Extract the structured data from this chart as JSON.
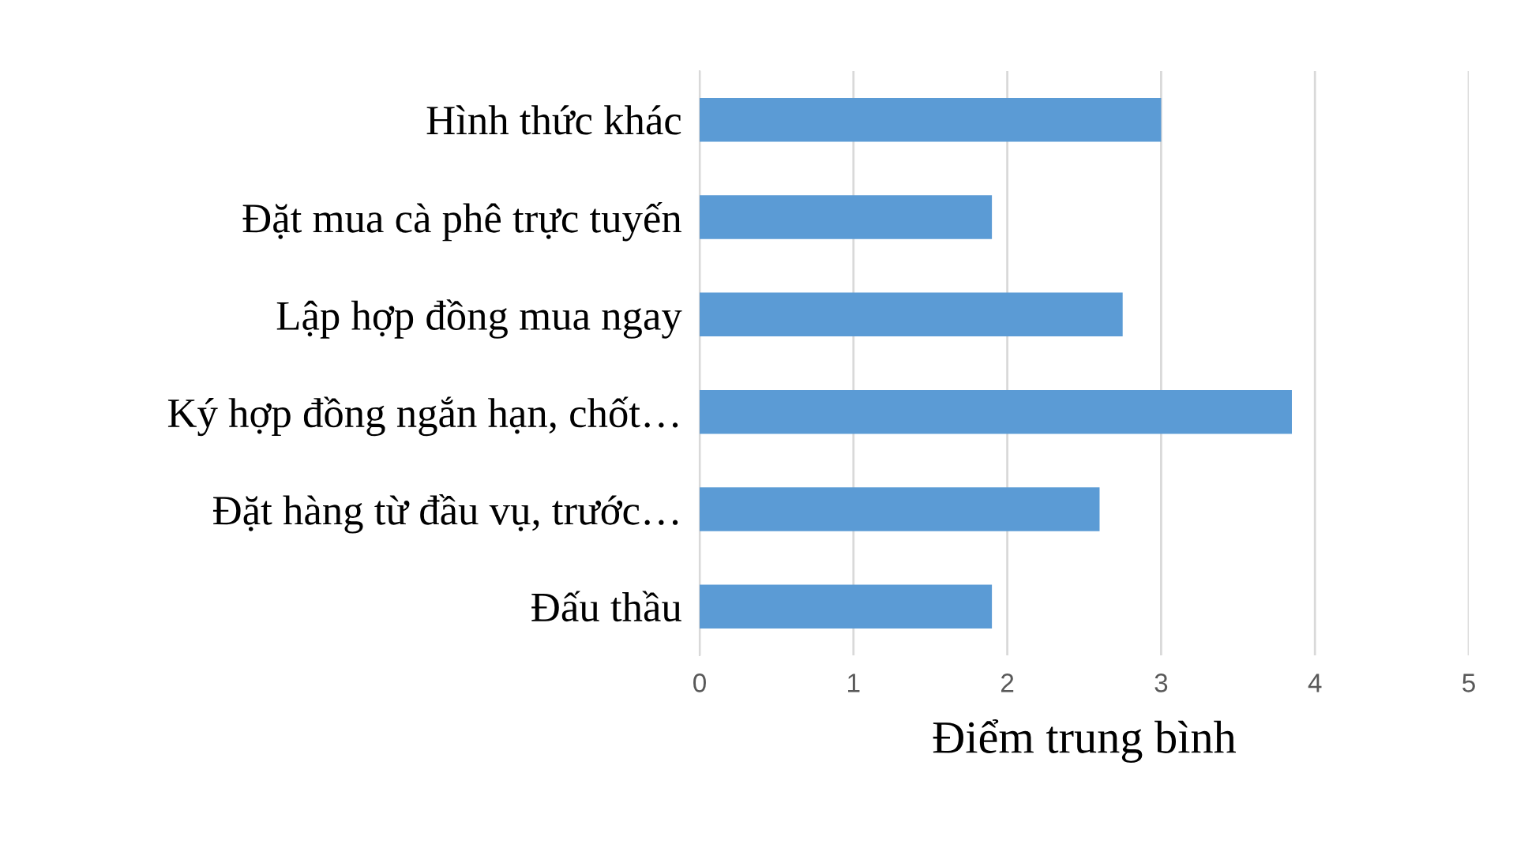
{
  "chart_data": {
    "type": "bar",
    "orientation": "horizontal",
    "xlabel": "Điểm trung bình",
    "categories": [
      "Hình thức khác",
      "Đặt mua cà phê trực tuyến",
      "Lập hợp đồng mua ngay",
      "Ký hợp đồng ngắn hạn, chốt…",
      "Đặt hàng từ đầu vụ, trước…",
      "Đấu thầu"
    ],
    "values": [
      3.0,
      1.9,
      2.75,
      3.85,
      2.6,
      1.9
    ],
    "color": "#5b9bd5",
    "xlim": [
      0,
      5
    ],
    "xticks": [
      0,
      1,
      2,
      3,
      4,
      5
    ],
    "grid": "x",
    "legend": false
  }
}
